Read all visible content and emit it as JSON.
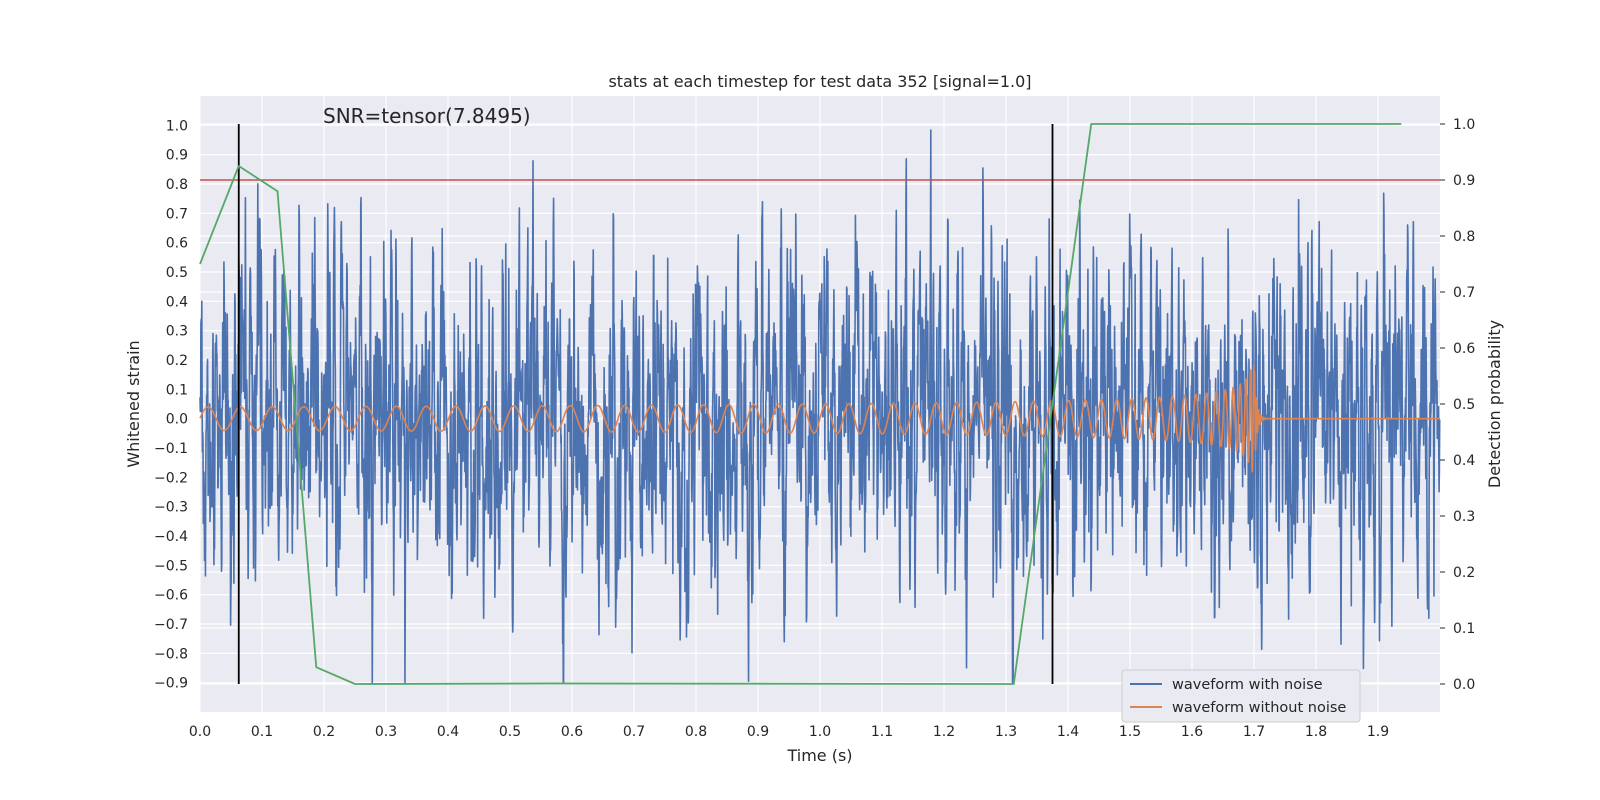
{
  "chart_data": {
    "type": "line",
    "title": "stats at each timestep for test data 352 [signal=1.0]",
    "xlabel": "Time (s)",
    "ylabel_left": "Whitened strain",
    "ylabel_right": "Detection probability",
    "xlim": [
      0.0,
      2.0
    ],
    "ylim_left": [
      -1.0,
      1.1
    ],
    "ylim_right": [
      -0.05,
      1.05
    ],
    "x_ticks": [
      "0.0",
      "0.1",
      "0.2",
      "0.3",
      "0.4",
      "0.5",
      "0.6",
      "0.7",
      "0.8",
      "0.9",
      "1.0",
      "1.1",
      "1.2",
      "1.3",
      "1.4",
      "1.5",
      "1.6",
      "1.7",
      "1.8",
      "1.9"
    ],
    "y_ticks_left": [
      "1.0",
      "0.9",
      "0.8",
      "0.7",
      "0.6",
      "0.5",
      "0.4",
      "0.3",
      "0.2",
      "0.1",
      "0.0",
      "−0.1",
      "−0.2",
      "−0.3",
      "−0.4",
      "−0.5",
      "−0.6",
      "−0.7",
      "−0.8",
      "−0.9"
    ],
    "y_ticks_right": [
      "1.0",
      "0.9",
      "0.8",
      "0.7",
      "0.6",
      "0.5",
      "0.4",
      "0.3",
      "0.2",
      "0.1",
      "0.0"
    ],
    "annotation": "SNR=tensor(7.8495)",
    "threshold_right": 0.9,
    "vertical_lines_x": [
      0.0625,
      1.375
    ],
    "series": [
      {
        "name": "waveform with noise",
        "color": "#4c72b0",
        "axis": "left",
        "kind": "noise",
        "sample_rate": 2048,
        "duration": 2.0,
        "amplitude_range": [
          -0.9,
          1.0
        ]
      },
      {
        "name": "waveform without noise",
        "color": "#dd8452",
        "axis": "left",
        "kind": "chirp",
        "merger_time": 1.7,
        "amplitude_range": [
          -0.3,
          0.3
        ]
      },
      {
        "name": "detection probability",
        "color": "#55a868",
        "axis": "right",
        "x": [
          0.0,
          0.0625,
          0.125,
          0.1875,
          0.25,
          0.5625,
          1.3125,
          1.4375,
          1.9375
        ],
        "y": [
          0.75,
          0.925,
          0.88,
          0.03,
          0.0,
          0.001,
          0.0,
          1.0,
          1.0
        ]
      }
    ],
    "threshold_color": "#c44e52",
    "legend_location": "lower-right",
    "legend": [
      "waveform with noise",
      "waveform without noise"
    ],
    "grid": true
  }
}
